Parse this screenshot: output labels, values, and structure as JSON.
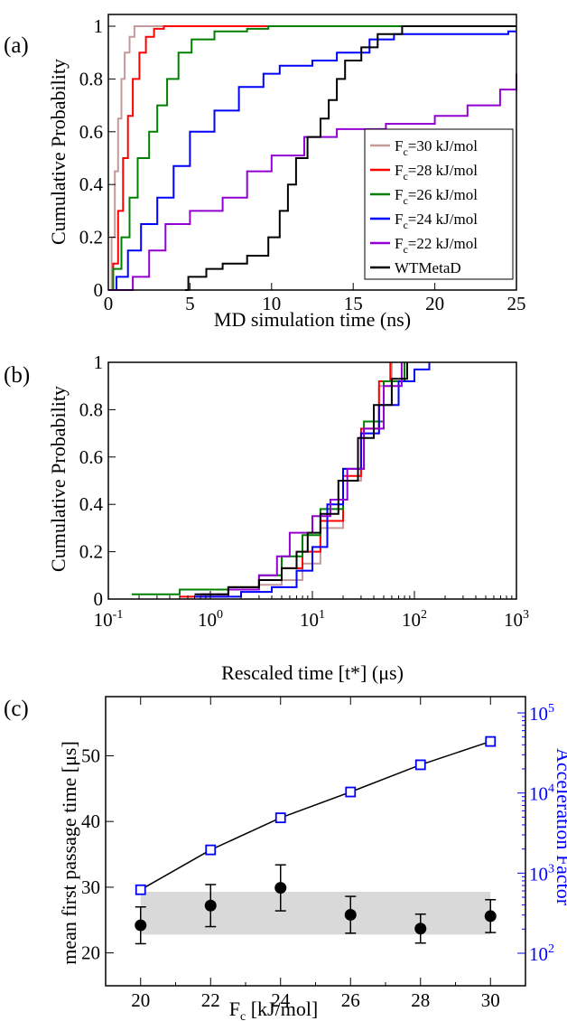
{
  "chart_data": [
    {
      "panel": "(a)",
      "type": "line",
      "xlabel": "MD simulation time (ns)",
      "ylabel": "Cumulative Probability",
      "xlim": [
        0,
        25
      ],
      "ylim": [
        0,
        1
      ],
      "xticks": [
        "0",
        "5",
        "10",
        "15",
        "20",
        "25"
      ],
      "yticks": [
        "0",
        "0.2",
        "0.4",
        "0.6",
        "0.8",
        "1"
      ],
      "legend_position": "center-right",
      "series": [
        {
          "name": "F",
          "sub": "c",
          "rest": "=30 kJ/mol",
          "color": "#c49a9a",
          "points": [
            [
              0,
              0
            ],
            [
              0.2,
              0.2
            ],
            [
              0.4,
              0.45
            ],
            [
              0.6,
              0.65
            ],
            [
              0.8,
              0.8
            ],
            [
              1.0,
              0.9
            ],
            [
              1.3,
              0.96
            ],
            [
              1.6,
              1.0
            ],
            [
              25,
              1.0
            ]
          ]
        },
        {
          "name": "F",
          "sub": "c",
          "rest": "=28 kJ/mol",
          "color": "#ff0000",
          "points": [
            [
              0,
              0
            ],
            [
              0.3,
              0.1
            ],
            [
              0.6,
              0.3
            ],
            [
              0.9,
              0.5
            ],
            [
              1.2,
              0.66
            ],
            [
              1.5,
              0.8
            ],
            [
              1.9,
              0.9
            ],
            [
              2.3,
              0.96
            ],
            [
              2.8,
              0.99
            ],
            [
              3.4,
              1.0
            ],
            [
              25,
              1.0
            ]
          ]
        },
        {
          "name": "F",
          "sub": "c",
          "rest": "=26 kJ/mol",
          "color": "#008000",
          "points": [
            [
              0,
              0
            ],
            [
              0.3,
              0.08
            ],
            [
              0.8,
              0.2
            ],
            [
              1.3,
              0.35
            ],
            [
              1.8,
              0.5
            ],
            [
              2.5,
              0.6
            ],
            [
              3.0,
              0.7
            ],
            [
              3.6,
              0.8
            ],
            [
              4.3,
              0.9
            ],
            [
              5.1,
              0.95
            ],
            [
              6.5,
              0.98
            ],
            [
              8.5,
              0.99
            ],
            [
              9.8,
              1.0
            ],
            [
              25,
              1.0
            ]
          ]
        },
        {
          "name": "F",
          "sub": "c",
          "rest": "=24 kJ/mol",
          "color": "#0000ff",
          "points": [
            [
              0,
              0
            ],
            [
              0.5,
              0.05
            ],
            [
              1.2,
              0.15
            ],
            [
              2,
              0.25
            ],
            [
              3,
              0.35
            ],
            [
              4,
              0.47
            ],
            [
              5,
              0.6
            ],
            [
              6.5,
              0.68
            ],
            [
              8,
              0.77
            ],
            [
              9.5,
              0.82
            ],
            [
              10.5,
              0.85
            ],
            [
              12.5,
              0.87
            ],
            [
              14,
              0.9
            ],
            [
              16,
              0.95
            ],
            [
              17.5,
              0.97
            ],
            [
              20,
              0.97
            ],
            [
              24.5,
              0.98
            ],
            [
              25,
              0.98
            ]
          ]
        },
        {
          "name": "F",
          "sub": "c",
          "rest": "=22 kJ/mol",
          "color": "#9400d3",
          "points": [
            [
              0,
              0
            ],
            [
              1.5,
              0.05
            ],
            [
              2.5,
              0.15
            ],
            [
              3.5,
              0.25
            ],
            [
              5,
              0.3
            ],
            [
              7,
              0.35
            ],
            [
              8.5,
              0.45
            ],
            [
              10,
              0.51
            ],
            [
              12,
              0.58
            ],
            [
              14,
              0.61
            ],
            [
              17,
              0.63
            ],
            [
              20,
              0.66
            ],
            [
              22,
              0.7
            ],
            [
              24,
              0.76
            ],
            [
              25,
              0.82
            ]
          ]
        },
        {
          "name": "WTMetaD",
          "sub": "",
          "rest": "",
          "color": "#000000",
          "points": [
            [
              4.7,
              0
            ],
            [
              4.9,
              0.05
            ],
            [
              6,
              0.08
            ],
            [
              7,
              0.1
            ],
            [
              8.5,
              0.13
            ],
            [
              9.8,
              0.2
            ],
            [
              10.5,
              0.3
            ],
            [
              11,
              0.4
            ],
            [
              11.5,
              0.5
            ],
            [
              12.2,
              0.58
            ],
            [
              13,
              0.65
            ],
            [
              13.5,
              0.72
            ],
            [
              14,
              0.8
            ],
            [
              14.5,
              0.87
            ],
            [
              15.5,
              0.92
            ],
            [
              16.5,
              0.97
            ],
            [
              18,
              1.0
            ],
            [
              25,
              1.0
            ]
          ]
        }
      ]
    },
    {
      "panel": "(b)",
      "type": "line",
      "xlabel": "Rescaled time [t*] (μs)",
      "ylabel": "Cumulative Probability",
      "xscale": "log",
      "xlim": [
        0.1,
        1000
      ],
      "ylim": [
        0,
        1
      ],
      "xticks": [
        {
          "base": "10",
          "exp": "-1"
        },
        {
          "base": "10",
          "exp": "0"
        },
        {
          "base": "10",
          "exp": "1"
        },
        {
          "base": "10",
          "exp": "2"
        },
        {
          "base": "10",
          "exp": "3"
        }
      ],
      "yticks": [
        "0",
        "0.2",
        "0.4",
        "0.6",
        "0.8",
        "1"
      ],
      "series": [
        {
          "color": "#c49a9a",
          "points": [
            [
              0.6,
              0.01
            ],
            [
              1.5,
              0.04
            ],
            [
              3,
              0.06
            ],
            [
              5,
              0.08
            ],
            [
              8,
              0.15
            ],
            [
              12,
              0.3
            ],
            [
              20,
              0.5
            ],
            [
              30,
              0.7
            ],
            [
              45,
              0.9
            ],
            [
              60,
              1.0
            ]
          ]
        },
        {
          "color": "#ff0000",
          "points": [
            [
              0.5,
              0.01
            ],
            [
              1.5,
              0.05
            ],
            [
              3,
              0.08
            ],
            [
              5,
              0.13
            ],
            [
              8,
              0.2
            ],
            [
              12,
              0.33
            ],
            [
              20,
              0.52
            ],
            [
              30,
              0.72
            ],
            [
              45,
              0.92
            ],
            [
              58,
              1.0
            ]
          ]
        },
        {
          "color": "#008000",
          "points": [
            [
              0.17,
              0.02
            ],
            [
              0.5,
              0.04
            ],
            [
              1.5,
              0.05
            ],
            [
              3,
              0.1
            ],
            [
              5,
              0.18
            ],
            [
              8,
              0.27
            ],
            [
              12,
              0.38
            ],
            [
              20,
              0.55
            ],
            [
              32,
              0.75
            ],
            [
              50,
              0.92
            ],
            [
              80,
              1.0
            ]
          ]
        },
        {
          "color": "#0000ff",
          "points": [
            [
              0.7,
              0.01
            ],
            [
              2,
              0.03
            ],
            [
              4,
              0.05
            ],
            [
              7,
              0.12
            ],
            [
              10,
              0.22
            ],
            [
              14,
              0.4
            ],
            [
              20,
              0.55
            ],
            [
              30,
              0.7
            ],
            [
              45,
              0.82
            ],
            [
              70,
              0.92
            ],
            [
              100,
              0.97
            ],
            [
              140,
              1.0
            ]
          ]
        },
        {
          "color": "#9400d3",
          "points": [
            [
              0.8,
              0.02
            ],
            [
              1.5,
              0.04
            ],
            [
              3,
              0.1
            ],
            [
              4.5,
              0.18
            ],
            [
              6,
              0.28
            ],
            [
              10,
              0.35
            ],
            [
              15,
              0.42
            ],
            [
              22,
              0.55
            ],
            [
              32,
              0.72
            ],
            [
              50,
              0.9
            ],
            [
              75,
              1.0
            ]
          ]
        },
        {
          "color": "#000000",
          "points": [
            [
              0.7,
              0.02
            ],
            [
              1.5,
              0.05
            ],
            [
              3,
              0.08
            ],
            [
              5,
              0.13
            ],
            [
              7,
              0.2
            ],
            [
              9,
              0.28
            ],
            [
              12,
              0.36
            ],
            [
              18,
              0.5
            ],
            [
              28,
              0.68
            ],
            [
              40,
              0.82
            ],
            [
              60,
              0.93
            ],
            [
              85,
              1.0
            ]
          ]
        }
      ]
    },
    {
      "panel": "(c)",
      "type": "scatter",
      "xlabel": "F",
      "xlabel_sub": "c",
      "xlabel_rest": " [kJ/mol]",
      "ylabel": "mean first passage time [μs]",
      "ylabel_right": "Acceleration Factor",
      "xlim": [
        19,
        31
      ],
      "ylim": [
        15,
        59
      ],
      "xticks": [
        "20",
        "22",
        "24",
        "26",
        "28",
        "30"
      ],
      "yticks": [
        "20",
        "30",
        "40",
        "50"
      ],
      "y2scale": "log",
      "y2ticks": [
        {
          "base": "10",
          "exp": "2"
        },
        {
          "base": "10",
          "exp": "3"
        },
        {
          "base": "10",
          "exp": "4"
        },
        {
          "base": "10",
          "exp": "5"
        }
      ],
      "band": [
        22.8,
        29.3
      ],
      "mfpt": {
        "x": [
          20,
          22,
          24,
          26,
          28,
          30
        ],
        "y": [
          24.2,
          27.2,
          29.9,
          25.8,
          23.7,
          25.6
        ],
        "err": [
          2.8,
          3.2,
          3.5,
          2.8,
          2.2,
          2.5
        ]
      },
      "acceleration": {
        "color": "#0000ff",
        "x": [
          20,
          22,
          24,
          26,
          28,
          30
        ],
        "y": [
          620,
          1950,
          4900,
          10300,
          22500,
          44000
        ]
      }
    }
  ]
}
